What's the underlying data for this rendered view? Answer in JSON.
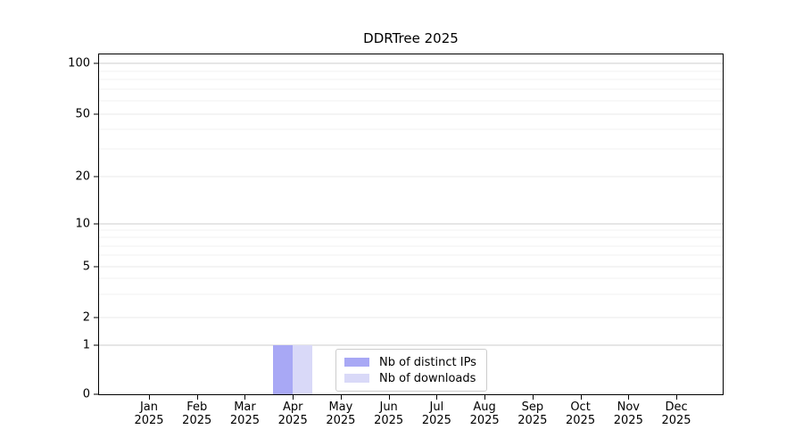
{
  "chart_data": {
    "type": "bar",
    "title": "DDRTree 2025",
    "categories": [
      "Jan",
      "Feb",
      "Mar",
      "Apr",
      "May",
      "Jun",
      "Jul",
      "Aug",
      "Sep",
      "Oct",
      "Nov",
      "Dec"
    ],
    "category_year": "2025",
    "series": [
      {
        "name": "Nb of distinct IPs",
        "color": "#a8a8f5",
        "values": [
          0,
          0,
          0,
          1,
          0,
          0,
          0,
          0,
          0,
          0,
          0,
          0
        ]
      },
      {
        "name": "Nb of downloads",
        "color": "#d9d9f8",
        "values": [
          0,
          0,
          0,
          1,
          0,
          0,
          0,
          0,
          0,
          0,
          0,
          0
        ]
      }
    ],
    "xlabel": "",
    "ylabel": "",
    "grid": true,
    "y_axis": {
      "scale": "log-like with zero baseline",
      "ticks": [
        {
          "value": 100,
          "label": "100",
          "pos": 0.026,
          "emphasis": true
        },
        {
          "value": 50,
          "label": "50",
          "pos": 0.175,
          "emphasis": false
        },
        {
          "value": 20,
          "label": "20",
          "pos": 0.36,
          "emphasis": false
        },
        {
          "value": 10,
          "label": "10",
          "pos": 0.499,
          "emphasis": true
        },
        {
          "value": 5,
          "label": "5",
          "pos": 0.624,
          "emphasis": false
        },
        {
          "value": 2,
          "label": "2",
          "pos": 0.773,
          "emphasis": false
        },
        {
          "value": 1,
          "label": "1",
          "pos": 0.856,
          "emphasis": true
        },
        {
          "value": 0,
          "label": "0",
          "pos": 1.0,
          "emphasis": false
        }
      ],
      "minor_gridline_pos": [
        0.049,
        0.074,
        0.103,
        0.136,
        0.22,
        0.278,
        0.518,
        0.539,
        0.563,
        0.591,
        0.66,
        0.707
      ]
    },
    "legend": {
      "position": "lower center",
      "entries": [
        "Nb of distinct IPs",
        "Nb of downloads"
      ]
    },
    "colors": {
      "axis": "#000000",
      "major_grid": "#cccccc",
      "labeled_grid": "#e9e9e9",
      "minor_grid": "#f2f2f2",
      "text": "#000000",
      "background": "#ffffff"
    }
  }
}
